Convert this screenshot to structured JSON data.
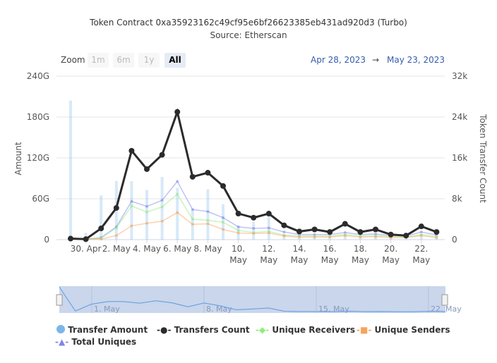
{
  "title": "Token Contract 0xa35923162c49cf95e6bf26623385eb431ad920d3 (Turbo)",
  "source": "Source: Etherscan",
  "zoom": {
    "label": "Zoom",
    "buttons": [
      "1m",
      "6m",
      "1y",
      "All"
    ],
    "active": "All"
  },
  "range": {
    "from": "Apr 28, 2023",
    "arrow": "→",
    "to": "May 23, 2023"
  },
  "navigator": {
    "labels": [
      "1. May",
      "8. May",
      "15. May",
      "22. May"
    ]
  },
  "legend": [
    "Transfer Amount",
    "Transfers Count",
    "Unique Receivers",
    "Unique Senders",
    "Total Uniques"
  ],
  "colors": {
    "amount": "#7cb5ec",
    "count": "#2b2b2b",
    "receivers": "#90ed7d",
    "senders": "#f7a35c",
    "uniques": "#8085e9"
  },
  "chart_data": {
    "type": "line",
    "title": "Token Contract 0xa35923162c49cf95e6bf26623385eb431ad920d3 (Turbo)",
    "subtitle": "Source: Etherscan",
    "x": [
      "Apr 29",
      "Apr 30",
      "May 1",
      "May 2",
      "May 3",
      "May 4",
      "May 5",
      "May 6",
      "May 7",
      "May 8",
      "May 9",
      "May 10",
      "May 11",
      "May 12",
      "May 13",
      "May 14",
      "May 15",
      "May 16",
      "May 17",
      "May 18",
      "May 19",
      "May 20",
      "May 21",
      "May 22",
      "May 23"
    ],
    "xticks": [
      [
        "30. Apr",
        ""
      ],
      [
        "2. May",
        ""
      ],
      [
        "4. May",
        ""
      ],
      [
        "6. May",
        ""
      ],
      [
        "8. May",
        ""
      ],
      [
        "10.",
        "May"
      ],
      [
        "12.",
        "May"
      ],
      [
        "14.",
        "May"
      ],
      [
        "16.",
        "May"
      ],
      [
        "18.",
        "May"
      ],
      [
        "20.",
        "May"
      ],
      [
        "22.",
        "May"
      ]
    ],
    "ylabel": "Amount",
    "ylim": [
      0,
      240
    ],
    "yticks": [
      "0",
      "60G",
      "120G",
      "180G",
      "240G"
    ],
    "y2label": "Token Transfer Count",
    "y2lim": [
      0,
      32
    ],
    "y2ticks": [
      "0",
      "8k",
      "16k",
      "24k",
      "32k"
    ],
    "series": [
      {
        "name": "Transfer Amount",
        "type": "bar",
        "axis": "left",
        "unit": "G",
        "values": [
          204,
          10,
          65,
          86,
          86,
          73,
          92,
          76,
          44,
          74,
          52,
          20,
          26,
          34,
          8,
          6,
          6,
          5,
          8,
          5,
          6,
          4,
          4,
          8,
          5
        ]
      },
      {
        "name": "Transfers Count",
        "axis": "right",
        "unit": "k",
        "values": [
          0.2,
          0.1,
          2.2,
          6.2,
          17.4,
          13.8,
          16.6,
          25,
          12.3,
          13.1,
          10.5,
          5.1,
          4.3,
          5.1,
          2.8,
          1.6,
          2.0,
          1.5,
          3.1,
          1.5,
          2.0,
          1.0,
          0.8,
          2.6,
          1.5
        ]
      },
      {
        "name": "Unique Receivers",
        "axis": "right",
        "unit": "k",
        "values": [
          0.1,
          0.1,
          0.3,
          2.3,
          6.6,
          5.4,
          6.4,
          8.9,
          4.0,
          3.8,
          3.4,
          1.8,
          1.4,
          1.6,
          0.9,
          0.7,
          0.7,
          0.7,
          1.0,
          0.7,
          0.8,
          0.6,
          0.5,
          1.0,
          0.6
        ]
      },
      {
        "name": "Unique Senders",
        "axis": "right",
        "unit": "k",
        "values": [
          0.1,
          0.1,
          0.1,
          0.8,
          2.7,
          3.2,
          3.6,
          5.3,
          3.0,
          3.1,
          2.0,
          1.3,
          1.2,
          1.3,
          0.7,
          0.5,
          0.5,
          0.5,
          0.8,
          0.5,
          0.6,
          0.4,
          0.4,
          0.8,
          0.4
        ]
      },
      {
        "name": "Total Uniques",
        "axis": "right",
        "unit": "k",
        "values": [
          0.1,
          0.1,
          0.4,
          2.5,
          7.5,
          6.5,
          7.7,
          11.4,
          5.9,
          5.5,
          4.3,
          2.5,
          2.2,
          2.3,
          1.5,
          1.0,
          1.0,
          1.0,
          1.4,
          1.0,
          1.1,
          0.8,
          0.7,
          1.5,
          0.9
        ]
      }
    ],
    "legend_position": "bottom"
  }
}
